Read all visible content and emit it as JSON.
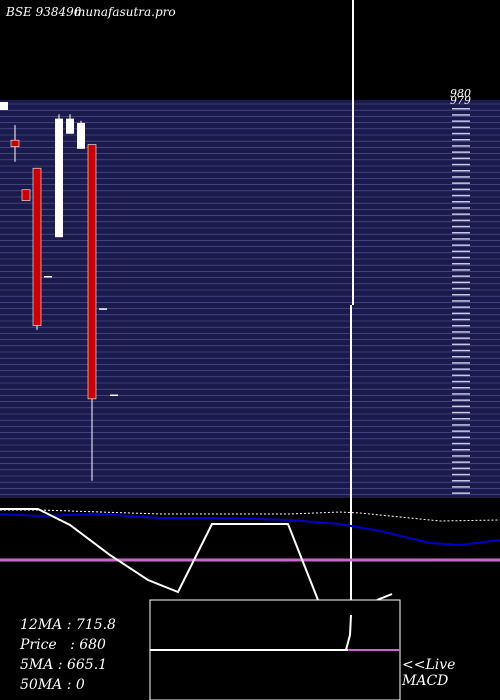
{
  "header": {
    "symbol_label": "BSE 938490",
    "site_label": "munafasutra.pro"
  },
  "right_axis": {
    "top_label": "980",
    "top_label_2": "979"
  },
  "stats": {
    "ma12": "12MA : 715.8",
    "price": "Price   : 680",
    "ma5": "5MA : 665.1",
    "ma50": "50MA : 0"
  },
  "macd_panel": {
    "live_label": "<<Live",
    "macd_label": "MACD"
  },
  "colors": {
    "background": "#000000",
    "price_panel": "#1a1a4d",
    "grid_line": "#5a5a9a",
    "bear_candle": "#cc0000",
    "bull_candle": "#ffffff",
    "ma_blue": "#0000cc",
    "ma_purple": "#cc66cc",
    "white_line": "#ffffff"
  },
  "chart_data": {
    "type": "candlestick",
    "candles": [
      {
        "open": 948,
        "high": 955,
        "low": 938,
        "close": 945,
        "color": "red"
      },
      {
        "open": 925,
        "high": 925,
        "low": 920,
        "close": 920,
        "color": "red"
      },
      {
        "open": 935,
        "high": 935,
        "low": 860,
        "close": 862,
        "color": "red"
      },
      {
        "open": 885,
        "high": 885,
        "low": 885,
        "close": 885,
        "color": "white"
      },
      {
        "open": 903,
        "high": 960,
        "low": 903,
        "close": 958,
        "color": "white"
      },
      {
        "open": 951,
        "high": 960,
        "low": 951,
        "close": 958,
        "color": "white"
      },
      {
        "open": 944,
        "high": 957,
        "low": 944,
        "close": 956,
        "color": "white"
      },
      {
        "open": 946,
        "high": 946,
        "low": 790,
        "close": 828,
        "color": "red"
      },
      {
        "open": 870,
        "high": 870,
        "low": 870,
        "close": 870,
        "color": "white"
      },
      {
        "open": 830,
        "high": 830,
        "low": 830,
        "close": 830,
        "color": "white"
      }
    ]
  }
}
